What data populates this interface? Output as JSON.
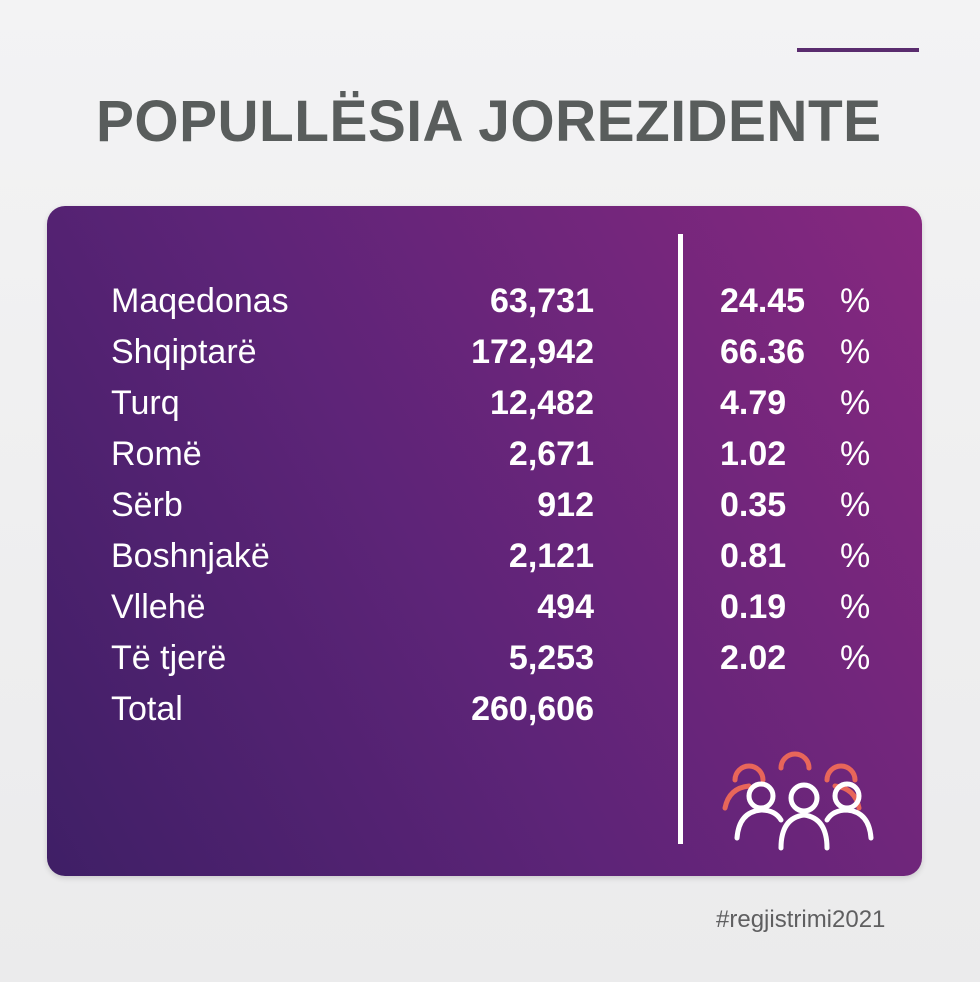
{
  "title": "POPULLËSIA JOREZIDENTE",
  "rows": [
    {
      "label": "Maqedonas",
      "count": "63,731",
      "pct": "24.45",
      "sign": "%"
    },
    {
      "label": "Shqiptarë",
      "count": "172,942",
      "pct": "66.36",
      "sign": "%"
    },
    {
      "label": "Turq",
      "count": "12,482",
      "pct": "4.79",
      "sign": "%"
    },
    {
      "label": "Romë",
      "count": "2,671",
      "pct": "1.02",
      "sign": "%"
    },
    {
      "label": "Sërb",
      "count": "912",
      "pct": "0.35",
      "sign": "%"
    },
    {
      "label": "Boshnjakë",
      "count": "2,121",
      "pct": "0.81",
      "sign": "%"
    },
    {
      "label": "Vllehë",
      "count": "494",
      "pct": "0.19",
      "sign": "%"
    },
    {
      "label": "Të tjerë",
      "count": "5,253",
      "pct": "2.02",
      "sign": "%"
    },
    {
      "label": "Total",
      "count": "260,606",
      "pct": "",
      "sign": ""
    }
  ],
  "hashtag": "#regjistrimi2021",
  "icon": "people-group-icon",
  "colors": {
    "title": "#595d5c",
    "card_start": "#3f1f66",
    "card_end": "#86287f",
    "icon_front": "#ffffff",
    "icon_back": "#e8665a",
    "accent_line": "#5a2c6e"
  }
}
